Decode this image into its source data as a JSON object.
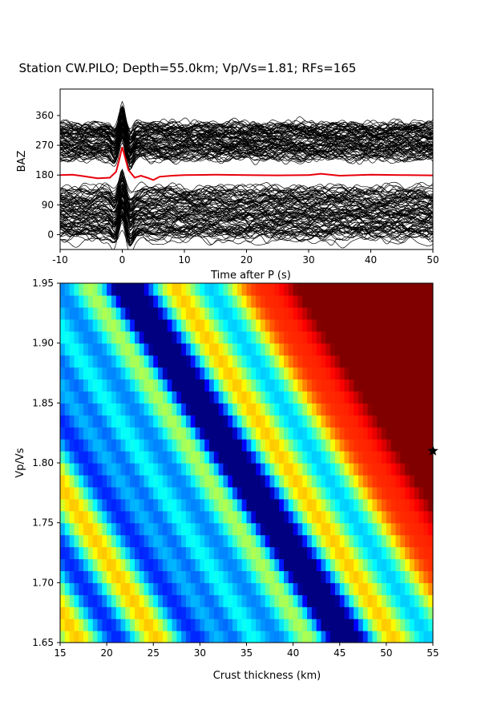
{
  "figure": {
    "title": "Station CW.PILO; Depth=55.0km; Vp/Vs=1.81; RFs=165"
  },
  "chart_data": [
    {
      "type": "line",
      "name": "receiver-functions",
      "xlabel": "Time after P (s)",
      "ylabel": "BAZ",
      "xlim": [
        -10,
        50
      ],
      "ylim": [
        -45,
        440
      ],
      "xticks": [
        -10,
        0,
        10,
        20,
        30,
        40,
        50
      ],
      "yticks": [
        0,
        90,
        180,
        270,
        360
      ],
      "trace_count": 165,
      "trace_color": "#000000",
      "stack_color": "#e8000b",
      "stack_baseline_baz": 180,
      "stack_series": {
        "x": [
          -10,
          -8,
          -6,
          -4,
          -2,
          -1,
          -0.5,
          0,
          0.5,
          1,
          2,
          3,
          4,
          5,
          6,
          8,
          10,
          15,
          20,
          25,
          30,
          32,
          35,
          40,
          45,
          50
        ],
        "y": [
          180,
          181,
          176,
          170,
          172,
          190,
          225,
          265,
          230,
          195,
          172,
          178,
          172,
          165,
          175,
          178,
          180,
          181,
          180,
          179,
          180,
          184,
          178,
          181,
          180,
          179
        ]
      }
    },
    {
      "type": "heatmap",
      "name": "h-k-stack",
      "xlabel": "Crust thickness (km)",
      "ylabel": "Vp/Vs",
      "xlim": [
        15,
        55
      ],
      "ylim": [
        1.65,
        1.95
      ],
      "xticks": [
        15,
        20,
        25,
        30,
        35,
        40,
        45,
        50,
        55
      ],
      "yticks": [
        1.65,
        1.7,
        1.75,
        1.8,
        1.85,
        1.9,
        1.95
      ],
      "colormap": "jet",
      "best_fit": {
        "thickness": 55.0,
        "vpvs": 1.81
      }
    }
  ]
}
